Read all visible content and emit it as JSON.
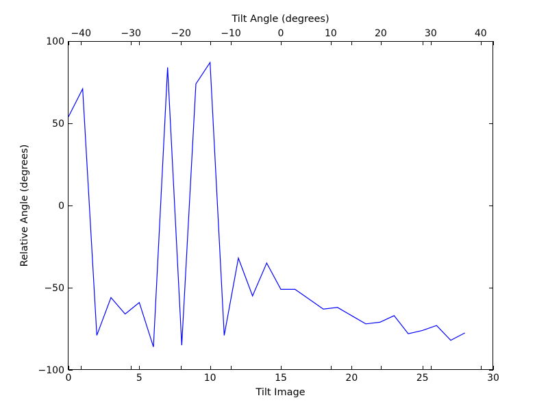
{
  "chart_data": {
    "type": "line",
    "xlabel": "Tilt Image",
    "ylabel": "Relative Angle (degrees)",
    "x2label": "Tilt Angle (degrees)",
    "xlim": [
      0,
      30
    ],
    "ylim": [
      -100,
      100
    ],
    "x2lim": [
      -42.5,
      42.5
    ],
    "grid": false,
    "line_color": "#0000ff",
    "x_ticks": [
      0,
      5,
      10,
      15,
      20,
      25,
      30
    ],
    "x_tick_labels": [
      "0",
      "5",
      "10",
      "15",
      "20",
      "25",
      "30"
    ],
    "y_ticks": [
      -100,
      -50,
      0,
      50,
      100
    ],
    "y_tick_labels": [
      "−100",
      "−50",
      "0",
      "50",
      "100"
    ],
    "x2_ticks": [
      -40,
      -30,
      -20,
      -10,
      0,
      10,
      20,
      30,
      40
    ],
    "x2_tick_labels": [
      "−40",
      "−30",
      "−20",
      "−10",
      "0",
      "10",
      "20",
      "30",
      "40"
    ],
    "series": [
      {
        "x": [
          0,
          1,
          2,
          3,
          4,
          5,
          6,
          7,
          8,
          9,
          10,
          11,
          12,
          13,
          14,
          15,
          16,
          17,
          18,
          19,
          20,
          21,
          22,
          23,
          24,
          25,
          26,
          27,
          28
        ],
        "y": [
          54,
          71,
          -79,
          -56,
          -66,
          -59,
          -86,
          84,
          -85,
          74,
          87,
          -79,
          -32,
          -55,
          -35,
          -51,
          -51,
          -57,
          -63,
          -62,
          -67,
          -72,
          -71,
          -67,
          -78,
          -76,
          -73,
          -82,
          -77.5
        ]
      }
    ]
  }
}
